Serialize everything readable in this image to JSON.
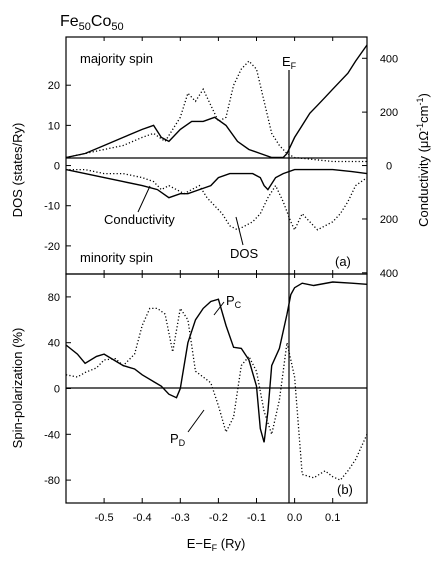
{
  "chart_data": [
    {
      "type": "line",
      "panel_label": "(a)",
      "title": "Fe50Co50",
      "title_main": "Fe",
      "title_sub1": "50",
      "title_mid": "Co",
      "title_sub2": "50",
      "ylabel": "DOS  (states/Ry)",
      "y2label_main": "Conductivity  (μΩ",
      "y2label_sup1": "-1",
      "y2label_mid": "cm",
      "y2label_sup2": "-1",
      "y2label_end": ")",
      "xlim": [
        -0.6,
        0.19
      ],
      "ylim": [
        -27,
        32
      ],
      "y_ticks": [
        20,
        10,
        0,
        -10,
        -20
      ],
      "y2_ticks": [
        {
          "label": "400",
          "value": 400,
          "y_equiv": 26.7
        },
        {
          "label": "200",
          "value": 200,
          "y_equiv": 13.3
        },
        {
          "label": "0",
          "value": 0,
          "y_equiv": 0
        },
        {
          "label": "200",
          "value": 200,
          "y_equiv": -13.3
        },
        {
          "label": "400",
          "value": 400,
          "y_equiv": -26.7
        }
      ],
      "annotations": {
        "majority": "majority spin",
        "minority": "minority spin",
        "conductivity": "Conductivity",
        "dos": "DOS",
        "ef_main": "E",
        "ef_sub": "F"
      },
      "fermi_level": 0,
      "series": [
        {
          "role": "conductivity (majority)",
          "style": "solid",
          "x": [
            -0.6,
            -0.55,
            -0.5,
            -0.45,
            -0.4,
            -0.37,
            -0.35,
            -0.33,
            -0.3,
            -0.27,
            -0.24,
            -0.21,
            -0.18,
            -0.15,
            -0.12,
            -0.09,
            -0.06,
            -0.03,
            -0.02,
            0.0,
            0.02,
            0.04,
            0.06,
            0.08,
            0.1,
            0.12,
            0.14,
            0.16,
            0.19
          ],
          "y": [
            2,
            3,
            5,
            7,
            9,
            10,
            7,
            6,
            9,
            11,
            11,
            12,
            10,
            6,
            4,
            3,
            2,
            2,
            3,
            7,
            10,
            13,
            15,
            17,
            19,
            21,
            23,
            26,
            30
          ]
        },
        {
          "role": "DOS (majority)",
          "style": "dotted",
          "x": [
            -0.6,
            -0.55,
            -0.5,
            -0.45,
            -0.4,
            -0.37,
            -0.34,
            -0.32,
            -0.3,
            -0.28,
            -0.26,
            -0.24,
            -0.22,
            -0.2,
            -0.18,
            -0.16,
            -0.14,
            -0.12,
            -0.1,
            -0.08,
            -0.06,
            -0.04,
            -0.02,
            0.0,
            0.05,
            0.1,
            0.15,
            0.19
          ],
          "y": [
            2,
            3,
            4,
            5,
            7,
            8,
            6,
            9,
            12,
            18,
            16,
            19,
            15,
            11,
            12,
            20,
            24,
            26,
            24,
            16,
            8,
            5,
            3,
            2,
            1.5,
            1,
            1,
            1
          ]
        },
        {
          "role": "conductivity (minority)",
          "style": "solid",
          "x": [
            -0.6,
            -0.55,
            -0.5,
            -0.45,
            -0.4,
            -0.36,
            -0.33,
            -0.3,
            -0.28,
            -0.25,
            -0.22,
            -0.2,
            -0.17,
            -0.14,
            -0.11,
            -0.09,
            -0.08,
            -0.07,
            -0.05,
            -0.03,
            0.0,
            0.05,
            0.1,
            0.15,
            0.19
          ],
          "y": [
            -1,
            -2,
            -3,
            -4,
            -5,
            -6,
            -8,
            -7,
            -7,
            -6,
            -5,
            -3,
            -2,
            -2,
            -2,
            -3,
            -5,
            -6,
            -3,
            -2,
            -1,
            -1,
            -1,
            -1.5,
            -2
          ]
        },
        {
          "role": "DOS (minority)",
          "style": "dotted",
          "x": [
            -0.6,
            -0.55,
            -0.5,
            -0.45,
            -0.4,
            -0.37,
            -0.35,
            -0.33,
            -0.31,
            -0.29,
            -0.27,
            -0.25,
            -0.23,
            -0.21,
            -0.19,
            -0.17,
            -0.15,
            -0.13,
            -0.11,
            -0.09,
            -0.07,
            -0.05,
            -0.03,
            -0.01,
            0.0,
            0.02,
            0.04,
            0.06,
            0.08,
            0.1,
            0.12,
            0.14,
            0.16,
            0.19
          ],
          "y": [
            -1,
            -1,
            -2,
            -2,
            -3,
            -4,
            -6,
            -5,
            -6,
            -7,
            -6,
            -5,
            -8,
            -10,
            -12,
            -15,
            -16,
            -15,
            -14,
            -12,
            -8,
            -5,
            -9,
            -14,
            -16,
            -12,
            -14,
            -16,
            -15,
            -14,
            -12,
            -9,
            -5,
            -3
          ]
        }
      ]
    },
    {
      "type": "line",
      "panel_label": "(b)",
      "xlabel_main": "E",
      "xlabel_mid": "−E",
      "xlabel_sub": "F",
      "xlabel_end": " (Ry)",
      "ylabel": "Spin-polarization   (%)",
      "xlim": [
        -0.6,
        0.19
      ],
      "ylim": [
        -100,
        100
      ],
      "x_ticks": [
        {
          "label": "-0.5",
          "value": -0.5
        },
        {
          "label": "-0.4",
          "value": -0.4
        },
        {
          "label": "-0.3",
          "value": -0.3
        },
        {
          "label": "-0.2",
          "value": -0.2
        },
        {
          "label": "-0.1",
          "value": -0.1
        },
        {
          "label": "0.0",
          "value": 0.0
        },
        {
          "label": "0.1",
          "value": 0.1
        }
      ],
      "y_ticks": [
        80,
        40,
        0,
        -40,
        -80
      ],
      "annotations": {
        "pc_main": "P",
        "pc_sub": "C",
        "pd_main": "P",
        "pd_sub": "D"
      },
      "fermi_level": 0,
      "series": [
        {
          "role": "P_C",
          "style": "solid",
          "x": [
            -0.6,
            -0.57,
            -0.55,
            -0.52,
            -0.5,
            -0.47,
            -0.45,
            -0.42,
            -0.4,
            -0.37,
            -0.35,
            -0.33,
            -0.31,
            -0.3,
            -0.28,
            -0.26,
            -0.24,
            -0.22,
            -0.2,
            -0.18,
            -0.16,
            -0.14,
            -0.12,
            -0.1,
            -0.09,
            -0.08,
            -0.07,
            -0.06,
            -0.04,
            -0.02,
            -0.01,
            0.0,
            0.02,
            0.05,
            0.1,
            0.15,
            0.19
          ],
          "y": [
            38,
            30,
            22,
            28,
            30,
            24,
            20,
            17,
            12,
            6,
            2,
            -5,
            -8,
            0,
            40,
            60,
            70,
            76,
            78,
            55,
            36,
            35,
            25,
            2,
            -35,
            -47,
            -20,
            20,
            35,
            65,
            82,
            88,
            92,
            90,
            93,
            92,
            91
          ]
        },
        {
          "role": "P_D",
          "style": "dotted",
          "x": [
            -0.6,
            -0.57,
            -0.55,
            -0.52,
            -0.5,
            -0.47,
            -0.45,
            -0.42,
            -0.4,
            -0.38,
            -0.36,
            -0.34,
            -0.32,
            -0.3,
            -0.28,
            -0.26,
            -0.24,
            -0.22,
            -0.2,
            -0.18,
            -0.16,
            -0.14,
            -0.12,
            -0.1,
            -0.08,
            -0.06,
            -0.04,
            -0.02,
            0.0,
            0.02,
            0.05,
            0.08,
            0.1,
            0.12,
            0.14,
            0.16,
            0.19
          ],
          "y": [
            12,
            10,
            14,
            18,
            25,
            26,
            20,
            30,
            55,
            70,
            70,
            65,
            32,
            70,
            60,
            15,
            10,
            5,
            -15,
            -38,
            -25,
            20,
            28,
            15,
            -20,
            -40,
            -10,
            40,
            10,
            -75,
            -78,
            -72,
            -77,
            -80,
            -72,
            -62,
            -40
          ]
        }
      ]
    }
  ]
}
